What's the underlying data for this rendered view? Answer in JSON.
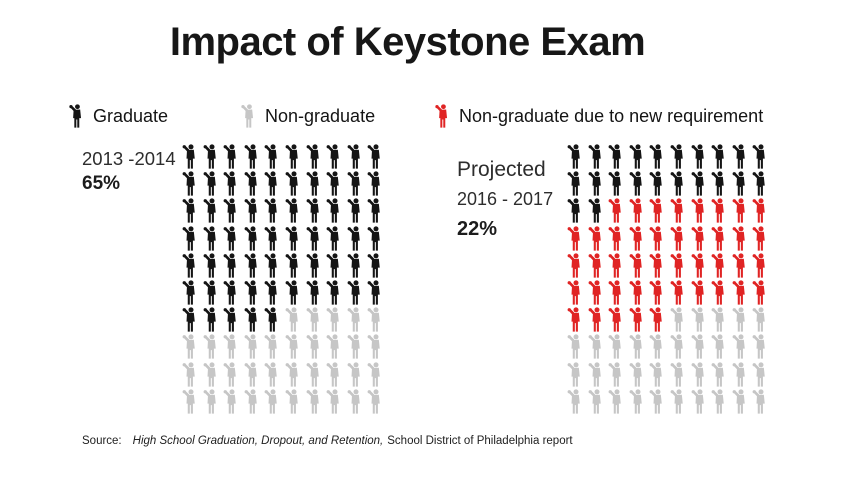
{
  "title": "Impact of Keystone Exam",
  "colors": {
    "graduate": "#151515",
    "non_graduate": "#c6c6c6",
    "non_graduate_new": "#e02424"
  },
  "legend": {
    "items": [
      {
        "key": "graduate",
        "label": "Graduate"
      },
      {
        "key": "non_graduate",
        "label": "Non-graduate"
      },
      {
        "key": "non_graduate_new",
        "label": "Non-graduate due to new requirement"
      }
    ]
  },
  "symbol_map": {
    "G": "graduate",
    "N": "non_graduate",
    "R": "non_graduate_new"
  },
  "chart_data": [
    {
      "type": "pictograph",
      "title": "2013 -2014",
      "percent": "65%",
      "grid": {
        "rows": 10,
        "cols": 10,
        "unit_percent_each": 1
      },
      "counts": {
        "graduate": 65,
        "non_graduate": 35,
        "non_graduate_new": 0
      },
      "rows": [
        "GGGGGGGGGG",
        "GGGGGGGGGG",
        "GGGGGGGGGG",
        "GGGGGGGGGG",
        "GGGGGGGGGG",
        "GGGGGGGGGG",
        "GGGGGNNNNN",
        "NNNNNNNNNN",
        "NNNNNNNNNN",
        "NNNNNNNNNN"
      ]
    },
    {
      "type": "pictograph",
      "title": "Projected 2016 - 2017",
      "label_line_1": "Projected",
      "label_line_2": "2016 - 2017",
      "percent": "22%",
      "grid": {
        "rows": 10,
        "cols": 10,
        "unit_percent_each": 1
      },
      "counts": {
        "graduate": 22,
        "non_graduate": 35,
        "non_graduate_new": 43
      },
      "rows": [
        "GGGGGGGGGG",
        "GGGGGGGGGG",
        "GGRRRRRRRR",
        "RRRRRRRRRR",
        "RRRRRRRRRR",
        "RRRRRRRRRR",
        "RRRRRNNNNN",
        "NNNNNNNNNN",
        "NNNNNNNNNN",
        "NNNNNNNNNN"
      ]
    }
  ],
  "source": {
    "prefix": "Source:",
    "italic_part": "High School Graduation, Dropout, and Retention,",
    "rest": "School District of Philadelphia report"
  }
}
